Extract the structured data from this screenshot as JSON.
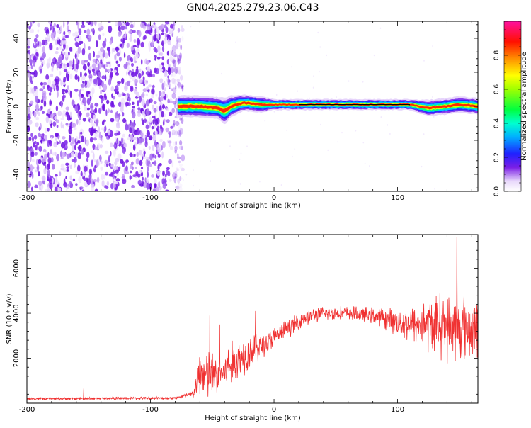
{
  "title": "GN04.2025.279.23.06.C43",
  "chart_data": [
    {
      "type": "heatmap",
      "xlabel": "Height of straight line (km)",
      "ylabel": "Frequency (Hz)",
      "xlim": [
        -200,
        165
      ],
      "ylim": [
        -50,
        50
      ],
      "x_ticks": [
        -200,
        -100,
        0,
        100
      ],
      "y_ticks": [
        -40,
        -20,
        0,
        20,
        40
      ],
      "noise_region_x": [
        -200,
        -77
      ],
      "signal_band": [
        {
          "x": -78,
          "center": 0,
          "halfwidth": 4
        },
        {
          "x": -60,
          "center": 0,
          "halfwidth": 4
        },
        {
          "x": -45,
          "center": -1,
          "halfwidth": 4
        },
        {
          "x": -40,
          "center": -3,
          "halfwidth": 5
        },
        {
          "x": -35,
          "center": 0,
          "halfwidth": 4
        },
        {
          "x": -25,
          "center": 2,
          "halfwidth": 3
        },
        {
          "x": -10,
          "center": 1,
          "halfwidth": 3
        },
        {
          "x": 0,
          "center": 1,
          "halfwidth": 2
        },
        {
          "x": 20,
          "center": 1,
          "halfwidth": 2
        },
        {
          "x": 110,
          "center": 1,
          "halfwidth": 2
        },
        {
          "x": 125,
          "center": -1,
          "halfwidth": 3
        },
        {
          "x": 140,
          "center": 0,
          "halfwidth": 3
        },
        {
          "x": 150,
          "center": 1,
          "halfwidth": 3
        },
        {
          "x": 165,
          "center": 0,
          "halfwidth": 3
        }
      ],
      "colorbar": {
        "label": "Normalized spectral amplitude",
        "range": [
          0.0,
          1.0
        ],
        "ticks": [
          0.0,
          0.2,
          0.4,
          0.6,
          0.8
        ],
        "tick_labels": [
          "0.0",
          "0.2",
          "0.4",
          "0.6",
          "0.8"
        ]
      },
      "grid": false
    },
    {
      "type": "line",
      "xlabel": "Height of straight line (km)",
      "ylabel": "SNR (10 * v/v)",
      "xlim": [
        -200,
        165
      ],
      "ylim": [
        0,
        7500
      ],
      "x_ticks": [
        -200,
        -100,
        0,
        100
      ],
      "y_ticks": [
        2000,
        4000,
        6000
      ],
      "series_color": "#f03232",
      "envelope": [
        {
          "x": -200,
          "mean": 200,
          "spread": 60
        },
        {
          "x": -150,
          "mean": 210,
          "spread": 60
        },
        {
          "x": -80,
          "mean": 230,
          "spread": 60
        },
        {
          "x": -65,
          "mean": 400,
          "spread": 200
        },
        {
          "x": -60,
          "mean": 1400,
          "spread": 1100
        },
        {
          "x": -52,
          "mean": 1200,
          "spread": 1200
        },
        {
          "x": -45,
          "mean": 1200,
          "spread": 800
        },
        {
          "x": -35,
          "mean": 1700,
          "spread": 1000
        },
        {
          "x": -20,
          "mean": 2300,
          "spread": 800
        },
        {
          "x": -5,
          "mean": 2700,
          "spread": 500
        },
        {
          "x": 10,
          "mean": 3300,
          "spread": 400
        },
        {
          "x": 25,
          "mean": 3800,
          "spread": 350
        },
        {
          "x": 40,
          "mean": 4000,
          "spread": 300
        },
        {
          "x": 60,
          "mean": 4000,
          "spread": 300
        },
        {
          "x": 80,
          "mean": 3900,
          "spread": 350
        },
        {
          "x": 100,
          "mean": 3600,
          "spread": 600
        },
        {
          "x": 115,
          "mean": 3500,
          "spread": 900
        },
        {
          "x": 130,
          "mean": 3500,
          "spread": 1300
        },
        {
          "x": 150,
          "mean": 3300,
          "spread": 1600
        },
        {
          "x": 165,
          "mean": 3300,
          "spread": 1200
        }
      ],
      "spikes": [
        {
          "x": -154,
          "y": 650
        },
        {
          "x": -52,
          "y": 3900
        },
        {
          "x": -44,
          "y": 3500
        },
        {
          "x": -15,
          "y": 4100
        },
        {
          "x": 148,
          "y": 7400
        }
      ],
      "grid": false
    }
  ]
}
